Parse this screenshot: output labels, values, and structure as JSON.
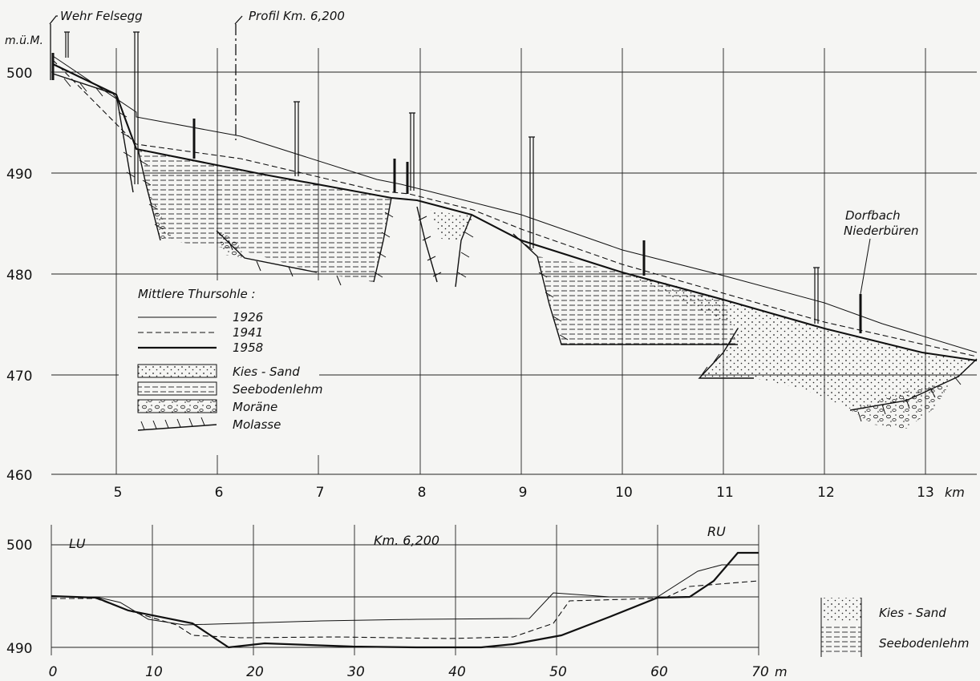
{
  "longitudinal_profile": {
    "y_axis_unit": "m.ü.M.",
    "y_ticks": [
      "500",
      "490",
      "480",
      "470",
      "460"
    ],
    "x_ticks": [
      "5",
      "6",
      "7",
      "8",
      "9",
      "10",
      "11",
      "12",
      "13"
    ],
    "x_unit": "km",
    "annotation_weir": "Wehr Felsegg",
    "annotation_profile": "Profil Km. 6,200",
    "annotation_creek_line1": "Dorfbach",
    "annotation_creek_line2": "Niederbüren"
  },
  "legend": {
    "title": "Mittlere Thursohle :",
    "lines": [
      {
        "label": "1926",
        "style": "thin-solid"
      },
      {
        "label": "1941",
        "style": "dashed"
      },
      {
        "label": "1958",
        "style": "thick-solid"
      }
    ],
    "materials": [
      {
        "label": "Kies - Sand",
        "pattern": "dots"
      },
      {
        "label": "Seebodenlehm",
        "pattern": "hlines"
      },
      {
        "label": "Moräne",
        "pattern": "gravel"
      },
      {
        "label": "Molasse",
        "pattern": "hatch"
      }
    ]
  },
  "cross_section": {
    "title": "Km. 6,200",
    "left_bank": "LU",
    "right_bank": "RU",
    "y_ticks": [
      "500",
      "490"
    ],
    "x_ticks": [
      "0",
      "10",
      "20",
      "30",
      "40",
      "50",
      "60",
      "70"
    ],
    "x_unit": "m",
    "legend_materials": [
      {
        "label": "Kies - Sand",
        "pattern": "dots"
      },
      {
        "label": "Seebodenlehm",
        "pattern": "hlines"
      }
    ]
  }
}
